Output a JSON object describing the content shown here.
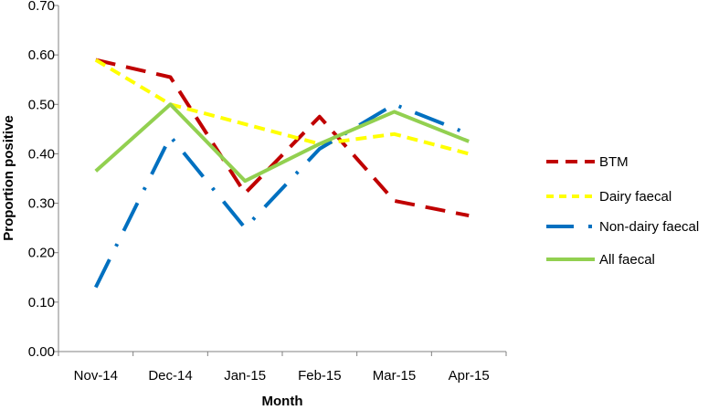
{
  "chart_data": {
    "type": "line",
    "categories": [
      "Nov-14",
      "Dec-14",
      "Jan-15",
      "Feb-15",
      "Mar-15",
      "Apr-15"
    ],
    "series": [
      {
        "name": "BTM",
        "color": "#c00000",
        "dash": "long-dash",
        "values": [
          0.59,
          0.555,
          0.32,
          0.475,
          0.305,
          0.275
        ]
      },
      {
        "name": "Dairy faecal",
        "color": "#ffff00",
        "dash": "dash",
        "values": [
          0.59,
          0.5,
          0.46,
          0.42,
          0.44,
          0.4
        ]
      },
      {
        "name": "Non-dairy faecal",
        "color": "#0070c0",
        "dash": "long-dash-dot",
        "values": [
          0.13,
          0.435,
          0.25,
          0.41,
          0.5,
          0.44
        ]
      },
      {
        "name": "All faecal",
        "color": "#92d050",
        "dash": "solid",
        "values": [
          0.365,
          0.5,
          0.345,
          0.42,
          0.485,
          0.425
        ]
      }
    ],
    "yticks": [
      "0.00",
      "0.10",
      "0.20",
      "0.30",
      "0.40",
      "0.50",
      "0.60",
      "0.70"
    ],
    "ylim": [
      0,
      0.7
    ],
    "xlabel": "Month",
    "ylabel": "Proportion positive",
    "grid": false,
    "legend_position": "right"
  }
}
